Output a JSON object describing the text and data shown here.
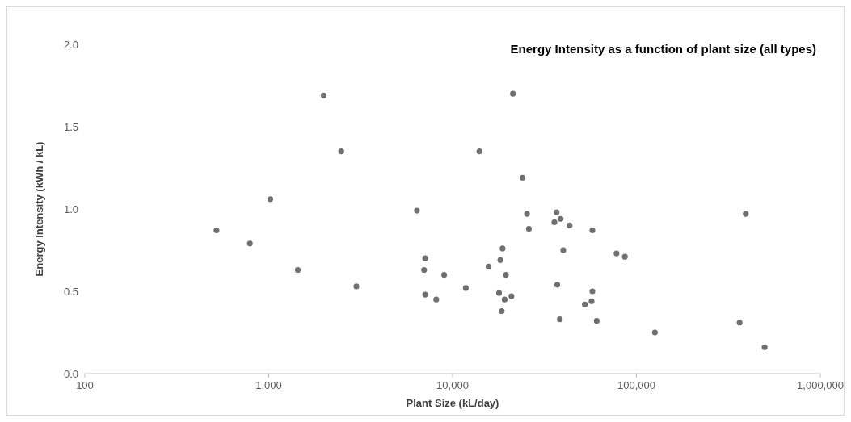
{
  "chart_data": {
    "type": "scatter",
    "title": "Energy Intensity as a function of plant size (all types)",
    "xlabel": "Plant Size (kL/day)",
    "ylabel": "Energy Intensity (kWh / kL)",
    "log": "x",
    "marker": "circle",
    "grid": false,
    "xlim": [
      100,
      1000000
    ],
    "xticks": [
      100,
      {
        "value": 1000,
        "label": "1,000"
      },
      {
        "value": 10000,
        "label": "10,000"
      },
      {
        "value": 100000,
        "label": "100,000"
      },
      {
        "value": 1000000,
        "label": "1,000,000"
      }
    ],
    "ylim": [
      0,
      2
    ],
    "yticks": [
      {
        "value": 0,
        "label": "0.0"
      },
      {
        "value": 0.5,
        "label": "0.5"
      },
      {
        "value": 1,
        "label": "1.0"
      },
      {
        "value": 1.5,
        "label": "1.5"
      },
      {
        "value": 2,
        "label": "2.0"
      }
    ],
    "series": [
      {
        "color": "#707070",
        "x": [
          520,
          790,
          1020,
          1440,
          1990,
          2480,
          3000,
          6400,
          7000,
          7100,
          7100,
          8150,
          9000,
          11800,
          14000,
          15700,
          17900,
          18200,
          18500,
          18700,
          19200,
          19500,
          20900,
          21300,
          24000,
          25400,
          26000,
          35800,
          36800,
          37100,
          38300,
          38700,
          40000,
          43300,
          52400,
          57000,
          57600,
          57600,
          60800,
          77900,
          86500,
          126000,
          364000,
          393000,
          498000
        ],
        "values": [
          0.87,
          0.79,
          1.06,
          0.63,
          1.69,
          1.35,
          0.53,
          0.99,
          0.63,
          0.7,
          0.48,
          0.45,
          0.6,
          0.52,
          1.35,
          0.65,
          0.49,
          0.69,
          0.38,
          0.76,
          0.45,
          0.6,
          0.47,
          1.7,
          1.19,
          0.97,
          0.88,
          0.92,
          0.98,
          0.54,
          0.33,
          0.94,
          0.75,
          0.9,
          0.42,
          0.44,
          0.87,
          0.5,
          0.32,
          0.73,
          0.71,
          0.25,
          0.31,
          0.97,
          0.16
        ]
      }
    ]
  }
}
